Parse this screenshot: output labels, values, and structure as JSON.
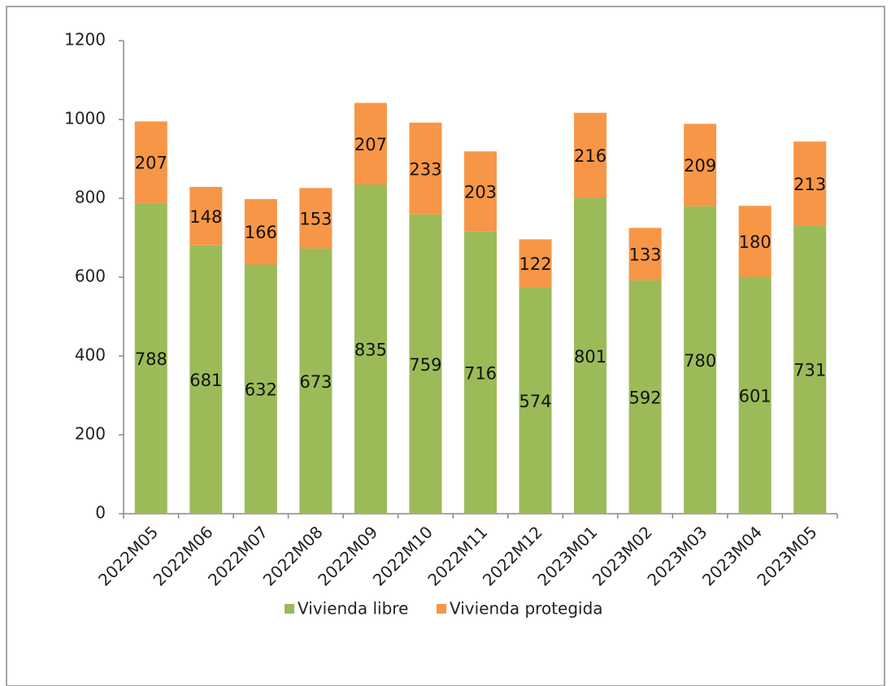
{
  "chart_data": {
    "type": "stacked_bar",
    "categories": [
      "2022M05",
      "2022M06",
      "2022M07",
      "2022M08",
      "2022M09",
      "2022M10",
      "2022M11",
      "2022M12",
      "2023M01",
      "2023M02",
      "2023M03",
      "2023M04",
      "2023M05"
    ],
    "series": [
      {
        "name": "Vivienda libre",
        "color": "#9bbb59",
        "values": [
          788,
          681,
          632,
          673,
          835,
          759,
          716,
          574,
          801,
          592,
          780,
          601,
          731
        ]
      },
      {
        "name": "Vivienda protegida",
        "color": "#f79646",
        "values": [
          207,
          148,
          166,
          153,
          207,
          233,
          203,
          122,
          216,
          133,
          209,
          180,
          213
        ]
      }
    ],
    "ylim": [
      0,
      1200
    ],
    "yticks": [
      0,
      200,
      400,
      600,
      800,
      1000,
      1200
    ],
    "grid": false,
    "legend": "bottom"
  }
}
